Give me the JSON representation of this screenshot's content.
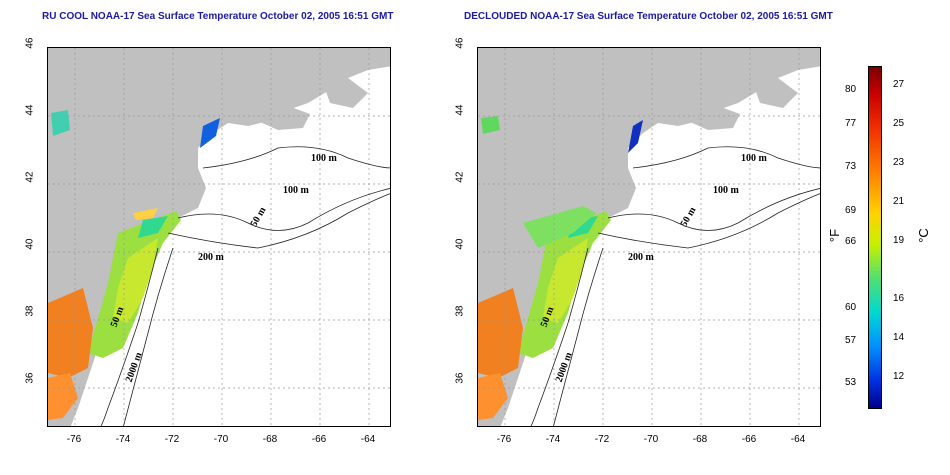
{
  "panels": [
    {
      "title": "RU COOL NOAA-17 Sea Surface Temperature October 02, 2005 16:51 GMT"
    },
    {
      "title": "DECLOUDED NOAA-17 Sea Surface Temperature October 02, 2005 16:51 GMT"
    }
  ],
  "axes": {
    "y_ticks": [
      "46",
      "44",
      "42",
      "40",
      "38",
      "36"
    ],
    "x_ticks": [
      "-76",
      "-74",
      "-72",
      "-70",
      "-68",
      "-66",
      "-64"
    ]
  },
  "contours": [
    "100 m",
    "100 m",
    "50 m",
    "200 m",
    "50 m",
    "2000 m"
  ],
  "colorbar": {
    "fahrenheit_ticks": [
      "80",
      "77",
      "73",
      "69",
      "66",
      "60",
      "57",
      "53"
    ],
    "celsius_ticks": [
      "27",
      "25",
      "23",
      "21",
      "19",
      "16",
      "14",
      "12"
    ],
    "unit_f": "°F",
    "unit_c": "°C"
  },
  "colors": {
    "land": "#c0c0c0",
    "title": "#1a1aa6"
  }
}
